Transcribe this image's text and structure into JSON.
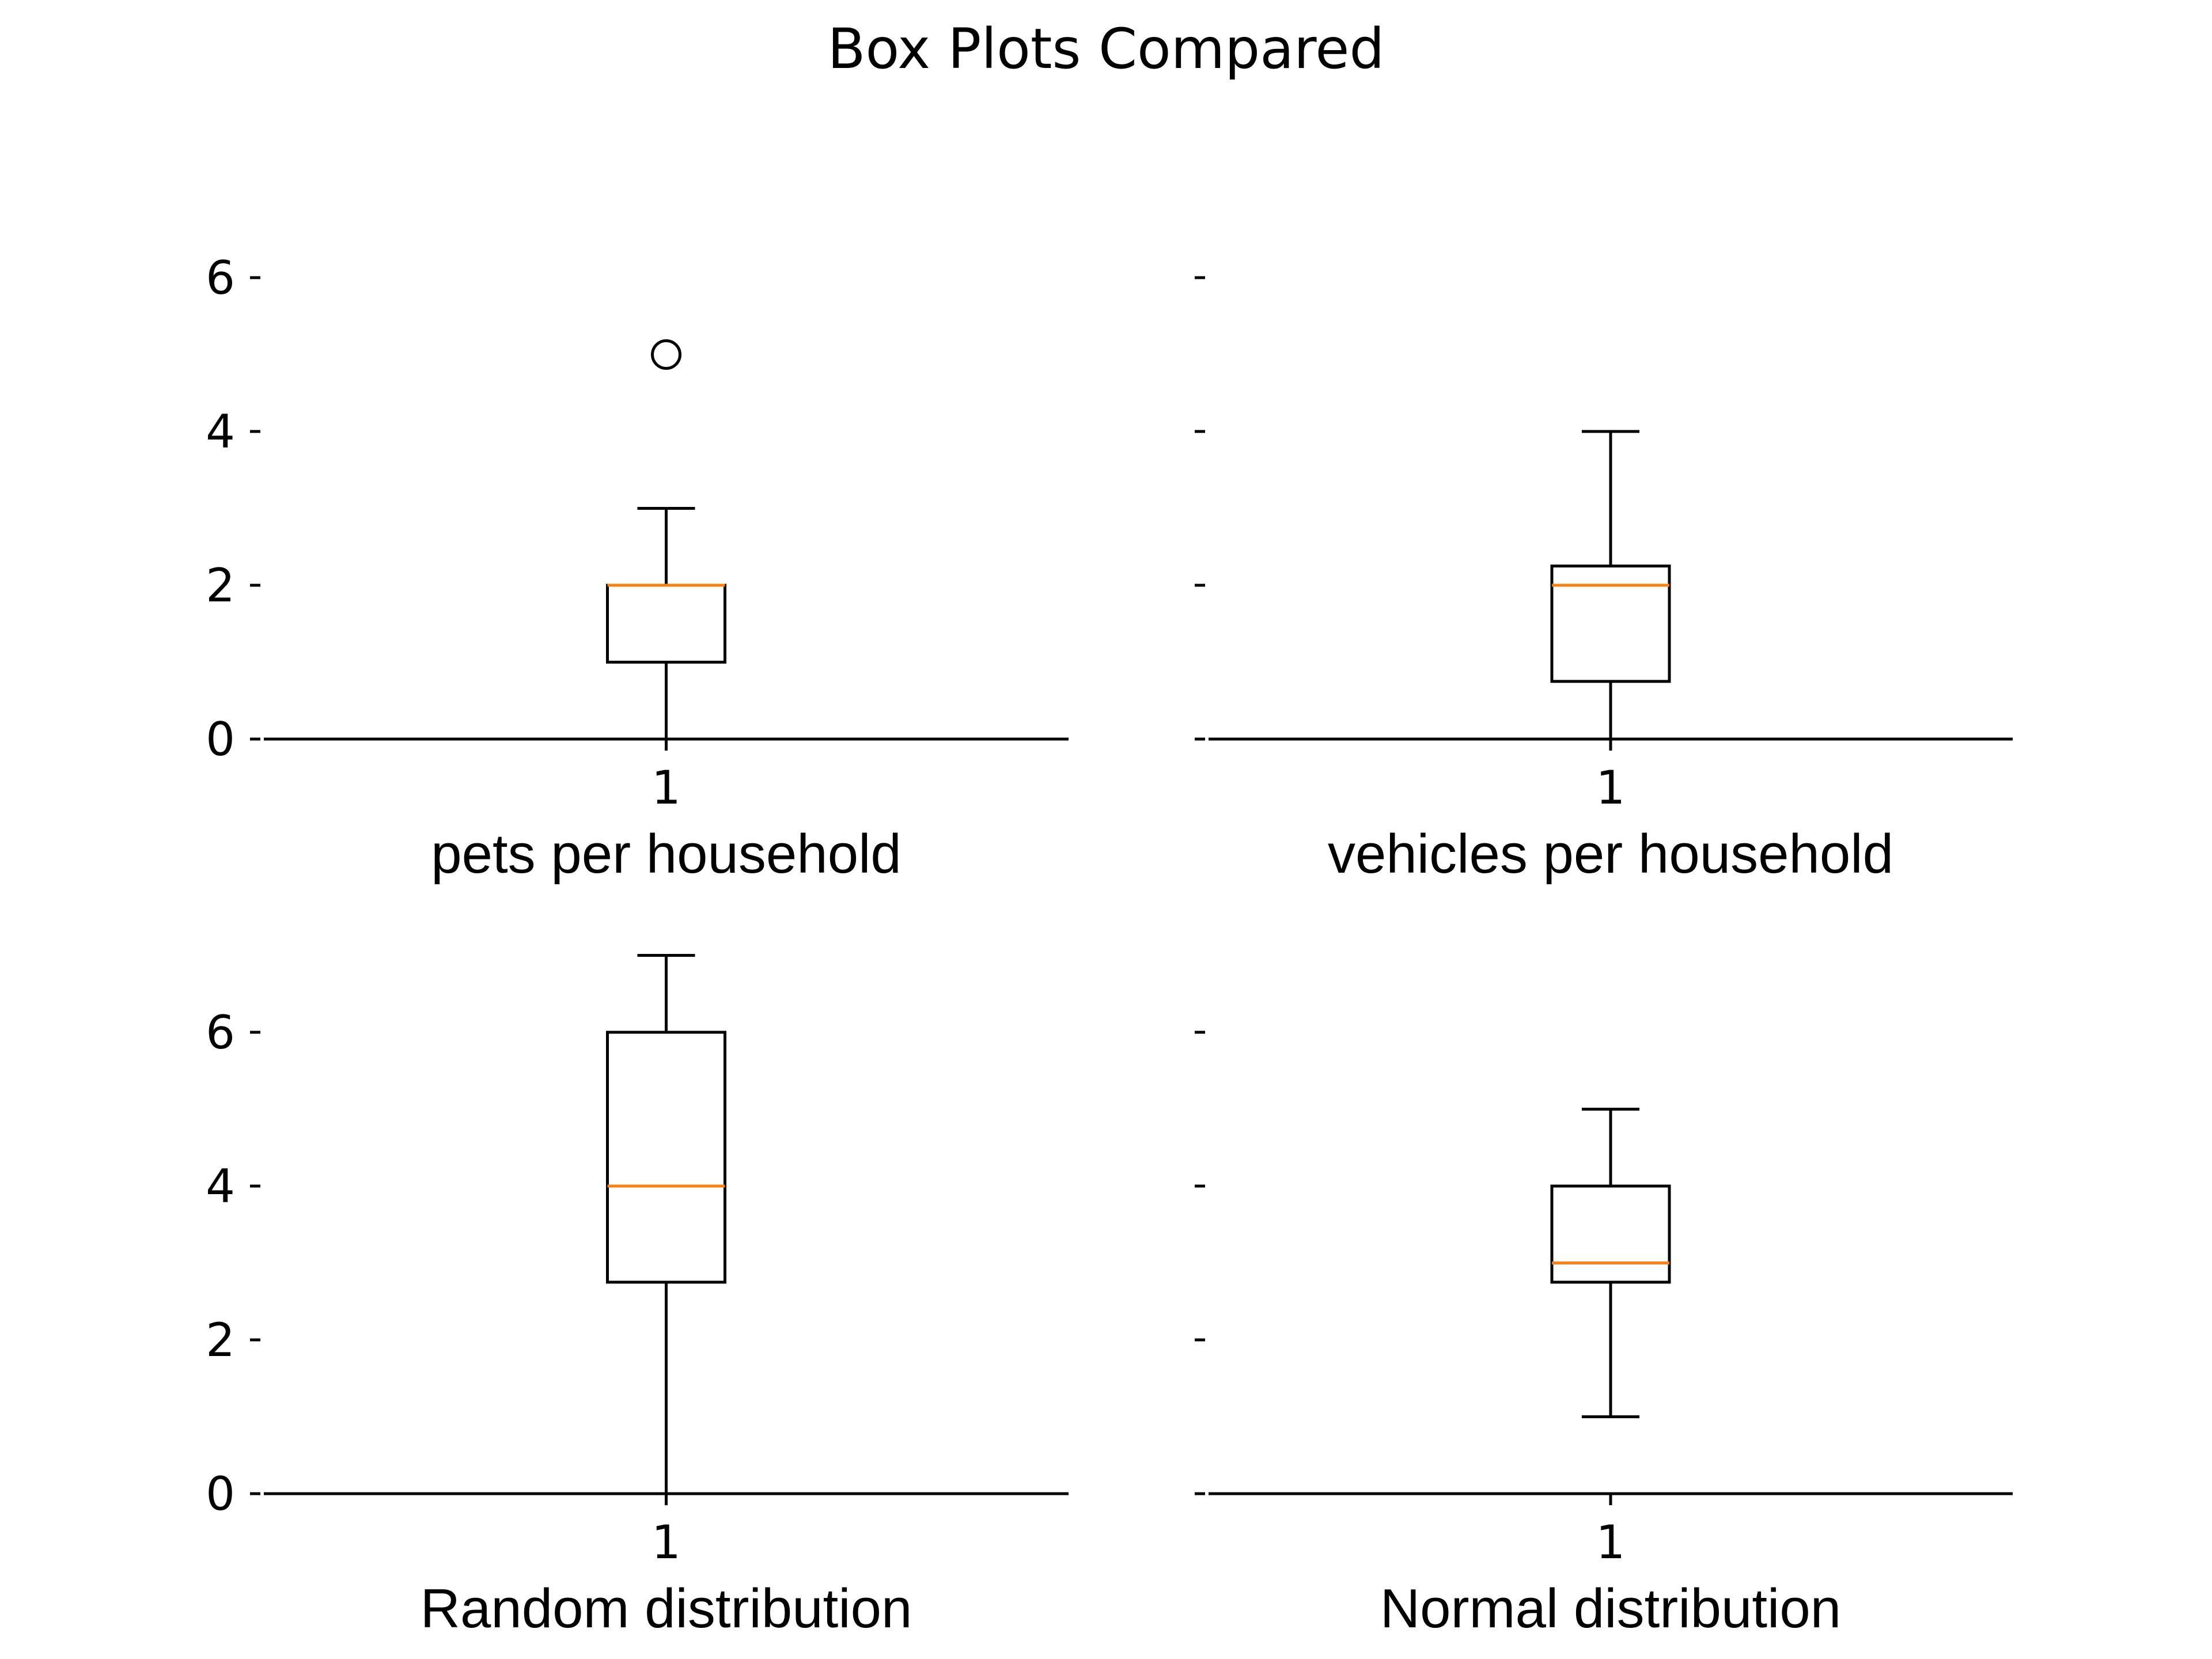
{
  "figure": {
    "title": "Box Plots Compared",
    "box_color": "#000000",
    "median_color": "#ff7f0e"
  },
  "chart_data": [
    {
      "type": "box",
      "xlabel": "pets per household",
      "categories": [
        "1"
      ],
      "ylim": [
        0,
        7
      ],
      "yticks": [
        0,
        2,
        4,
        6
      ],
      "ytick_labels_visible": true,
      "box": {
        "whisker_low": 0,
        "q1": 1,
        "median": 2,
        "q3": 2,
        "whisker_high": 3,
        "outliers": [
          5
        ]
      }
    },
    {
      "type": "box",
      "xlabel": "vehicles per household",
      "categories": [
        "1"
      ],
      "ylim": [
        0,
        7
      ],
      "yticks": [
        0,
        2,
        4,
        6
      ],
      "ytick_labels_visible": false,
      "box": {
        "whisker_low": 0,
        "q1": 0.75,
        "median": 2,
        "q3": 2.25,
        "whisker_high": 4,
        "outliers": []
      }
    },
    {
      "type": "box",
      "xlabel": "Random distribution",
      "categories": [
        "1"
      ],
      "ylim": [
        0,
        7
      ],
      "yticks": [
        0,
        2,
        4,
        6
      ],
      "ytick_labels_visible": true,
      "box": {
        "whisker_low": 0,
        "q1": 2.75,
        "median": 4,
        "q3": 6,
        "whisker_high": 7,
        "outliers": []
      }
    },
    {
      "type": "box",
      "xlabel": "Normal distribution",
      "categories": [
        "1"
      ],
      "ylim": [
        0,
        7
      ],
      "yticks": [
        0,
        2,
        4,
        6
      ],
      "ytick_labels_visible": false,
      "box": {
        "whisker_low": 1,
        "q1": 2.75,
        "median": 3,
        "q3": 4,
        "whisker_high": 5,
        "outliers": []
      }
    }
  ]
}
